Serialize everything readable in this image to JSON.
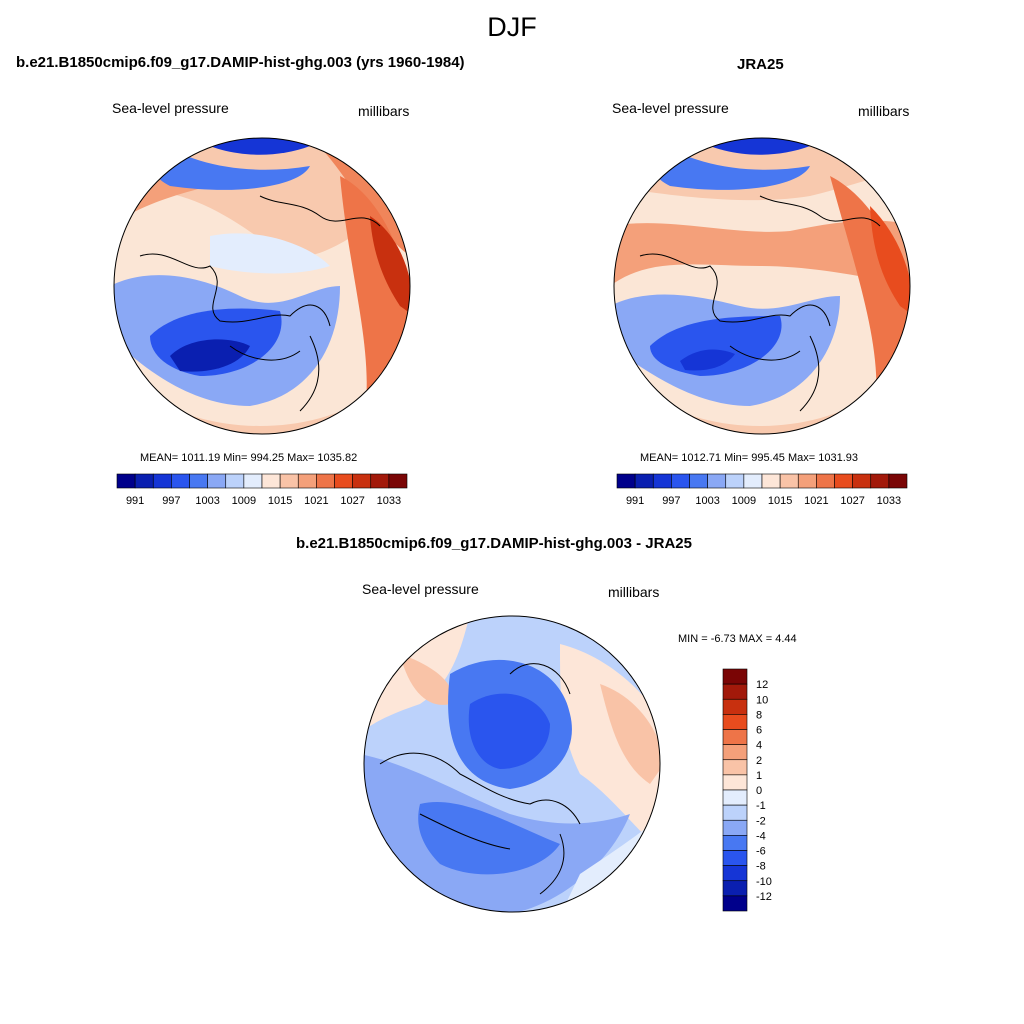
{
  "title": "DJF",
  "panels": [
    {
      "title": "b.e21.B1850cmip6.f09_g17.DAMIP-hist-ghg.003 (yrs 1960-1984)",
      "left_label": "Sea-level pressure",
      "right_label": "millibars",
      "stats": "MEAN= 1011.19  Min= 994.25  Max= 1035.82"
    },
    {
      "title": "JRA25",
      "left_label": "Sea-level pressure",
      "right_label": "millibars",
      "stats": "MEAN= 1012.71  Min= 995.45  Max= 1031.93"
    },
    {
      "title": "b.e21.B1850cmip6.f09_g17.DAMIP-hist-ghg.003 - JRA25",
      "left_label": "Sea-level pressure",
      "right_label": "millibars",
      "stats": "MIN =  -6.73 MAX =   4.44"
    }
  ],
  "colorbar_abs": {
    "colors": [
      "#00008b",
      "#0a1fb0",
      "#1535d6",
      "#2a55ee",
      "#4878f2",
      "#8aa8f5",
      "#bcd2fb",
      "#e3edfd",
      "#fde6d8",
      "#f9c3a7",
      "#f4a07a",
      "#ee7448",
      "#e84c1e",
      "#c8300f",
      "#a2190a",
      "#7a0505"
    ],
    "labels": [
      "991",
      "997",
      "1003",
      "1009",
      "1015",
      "1021",
      "1027",
      "1033"
    ]
  },
  "colorbar_diff": {
    "colors": [
      "#00008b",
      "#0a1fb0",
      "#1535d6",
      "#2a55ee",
      "#4878f2",
      "#8aa8f5",
      "#bcd2fb",
      "#e3edfd",
      "#fde6d8",
      "#f9c3a7",
      "#f4a07a",
      "#ee7448",
      "#e84c1e",
      "#c8300f",
      "#a2190a",
      "#7a0505"
    ],
    "labels": [
      "-12",
      "-10",
      "-8",
      "-6",
      "-4",
      "-2",
      "-1",
      "0",
      "1",
      "2",
      "4",
      "6",
      "8",
      "10",
      "12"
    ]
  },
  "palette": {
    "deep_blue": "#0a2cc2",
    "mid_blue": "#3a66e8",
    "light_blue": "#8aa8f5",
    "pale_blue": "#cfe0fb",
    "pale_red": "#fbe0cf",
    "light_red": "#f6b293",
    "mid_red": "#ee7448",
    "deep_red": "#c22a0d"
  }
}
